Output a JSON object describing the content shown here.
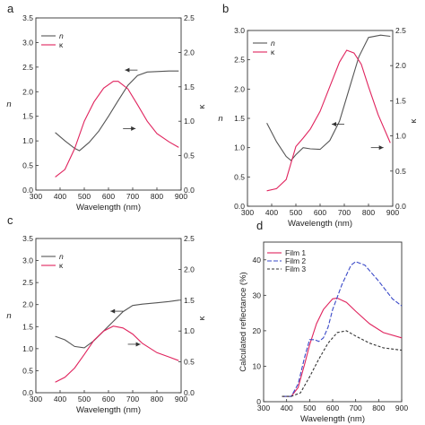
{
  "chart_data": [
    {
      "panel": "a",
      "type": "line",
      "xlabel": "Wavelength (nm)",
      "ylabel": "n",
      "y2label": "κ",
      "xlim": [
        300,
        900
      ],
      "ylim": [
        0,
        3.5
      ],
      "y2lim": [
        0,
        2.5
      ],
      "xticks": [
        "300",
        "400",
        "500",
        "600",
        "700",
        "800",
        "900"
      ],
      "yticks": [
        "0.0",
        "0.5",
        "1.0",
        "1.5",
        "2.0",
        "2.5",
        "3.0",
        "3.5"
      ],
      "y2ticks": [
        "0.0",
        "0.5",
        "1.0",
        "1.5",
        "2.0",
        "2.5"
      ],
      "legend": "top-left",
      "series": [
        {
          "name": "n",
          "axis": "left",
          "color": "#555555",
          "x": [
            380,
            420,
            460,
            480,
            520,
            560,
            600,
            640,
            680,
            720,
            760,
            800,
            850,
            890
          ],
          "y": [
            1.17,
            1.0,
            0.85,
            0.8,
            0.97,
            1.2,
            1.5,
            1.82,
            2.13,
            2.33,
            2.4,
            2.41,
            2.42,
            2.42
          ]
        },
        {
          "name": "κ",
          "axis": "right",
          "color": "#e0245e",
          "x": [
            380,
            420,
            460,
            500,
            540,
            580,
            620,
            640,
            680,
            720,
            760,
            800,
            850,
            890
          ],
          "y": [
            0.19,
            0.3,
            0.6,
            1.0,
            1.28,
            1.48,
            1.58,
            1.58,
            1.47,
            1.24,
            1.0,
            0.82,
            0.7,
            0.62
          ]
        }
      ],
      "arrows": [
        {
          "x": 720,
          "y": 2.44,
          "axis": "left",
          "direction": "left"
        },
        {
          "x": 660,
          "y": 1.25,
          "axis": "left",
          "direction": "right"
        }
      ]
    },
    {
      "panel": "b",
      "type": "line",
      "xlabel": "Wavelength (nm)",
      "ylabel": "n",
      "y2label": "κ",
      "xlim": [
        300,
        900
      ],
      "ylim": [
        0,
        3.0
      ],
      "y2lim": [
        0,
        2.5
      ],
      "xticks": [
        "300",
        "400",
        "500",
        "600",
        "700",
        "800",
        "900"
      ],
      "yticks": [
        "0.0",
        "0.5",
        "1.0",
        "1.5",
        "2.0",
        "2.5",
        "3.0"
      ],
      "y2ticks": [
        "0.0",
        "0.5",
        "1.0",
        "1.5",
        "2.0",
        "2.5"
      ],
      "legend": "top-left",
      "series": [
        {
          "name": "n",
          "axis": "left",
          "color": "#555555",
          "x": [
            380,
            420,
            460,
            480,
            500,
            530,
            560,
            600,
            640,
            680,
            720,
            760,
            800,
            850,
            890
          ],
          "y": [
            1.42,
            1.1,
            0.85,
            0.78,
            0.88,
            1.0,
            0.98,
            0.97,
            1.12,
            1.45,
            2.0,
            2.55,
            2.88,
            2.92,
            2.9
          ]
        },
        {
          "name": "κ",
          "axis": "right",
          "color": "#e0245e",
          "x": [
            380,
            420,
            460,
            500,
            530,
            560,
            600,
            640,
            680,
            710,
            740,
            770,
            800,
            840,
            890
          ],
          "y": [
            0.22,
            0.25,
            0.38,
            0.85,
            0.97,
            1.1,
            1.35,
            1.7,
            2.05,
            2.22,
            2.18,
            2.02,
            1.7,
            1.3,
            0.9
          ]
        }
      ],
      "arrows": [
        {
          "x": 700,
          "y": 1.4,
          "axis": "left",
          "direction": "left"
        },
        {
          "x": 810,
          "y": 1.0,
          "axis": "left",
          "direction": "right"
        }
      ]
    },
    {
      "panel": "c",
      "type": "line",
      "xlabel": "Wavelength (nm)",
      "ylabel": "n",
      "y2label": "κ",
      "xlim": [
        300,
        900
      ],
      "ylim": [
        0,
        3.5
      ],
      "y2lim": [
        0,
        2.5
      ],
      "xticks": [
        "300",
        "400",
        "500",
        "600",
        "700",
        "800",
        "900"
      ],
      "yticks": [
        "0.0",
        "0.5",
        "1.0",
        "1.5",
        "2.0",
        "2.5",
        "3.0",
        "3.5"
      ],
      "y2ticks": [
        "0.0",
        "0.5",
        "1.0",
        "1.5",
        "2.0",
        "2.5"
      ],
      "legend": "top-left",
      "series": [
        {
          "name": "n",
          "axis": "left",
          "color": "#555555",
          "x": [
            380,
            420,
            460,
            500,
            540,
            580,
            620,
            660,
            700,
            740,
            800,
            850,
            890
          ],
          "y": [
            1.28,
            1.2,
            1.05,
            1.02,
            1.18,
            1.4,
            1.62,
            1.84,
            1.98,
            2.01,
            2.04,
            2.07,
            2.1
          ]
        },
        {
          "name": "κ",
          "axis": "right",
          "color": "#e0245e",
          "x": [
            380,
            420,
            460,
            500,
            540,
            580,
            620,
            660,
            700,
            740,
            800,
            850,
            890
          ],
          "y": [
            0.17,
            0.25,
            0.4,
            0.62,
            0.85,
            1.0,
            1.08,
            1.05,
            0.95,
            0.8,
            0.65,
            0.58,
            0.52
          ]
        }
      ],
      "arrows": [
        {
          "x": 660,
          "y": 1.85,
          "axis": "left",
          "direction": "left"
        },
        {
          "x": 680,
          "y": 1.1,
          "axis": "left",
          "direction": "right"
        }
      ]
    },
    {
      "panel": "d",
      "type": "line",
      "xlabel": "Wavelength (nm)",
      "ylabel": "Calculated reflectance (%)",
      "xlim": [
        300,
        900
      ],
      "ylim": [
        0,
        45
      ],
      "xticks": [
        "300",
        "400",
        "500",
        "600",
        "700",
        "800",
        "900"
      ],
      "yticks": [
        "0",
        "10",
        "20",
        "30",
        "40"
      ],
      "legend": "top-left",
      "series": [
        {
          "name": "Film 1",
          "color": "#e0245e",
          "dash": "",
          "x": [
            380,
            420,
            450,
            480,
            500,
            530,
            560,
            600,
            620,
            660,
            700,
            760,
            820,
            900
          ],
          "y": [
            1.5,
            1.5,
            4,
            11,
            16,
            22,
            26,
            29,
            29.2,
            28,
            25.5,
            22,
            19.5,
            18
          ]
        },
        {
          "name": "Film 2",
          "color": "#3a49c8",
          "dash": "5,2",
          "x": [
            380,
            420,
            450,
            480,
            500,
            520,
            540,
            560,
            580,
            600,
            640,
            680,
            700,
            740,
            800,
            860,
            900
          ],
          "y": [
            1.5,
            1.5,
            5,
            13,
            17.5,
            17.5,
            17,
            18,
            21,
            26,
            33,
            38.5,
            39.5,
            38.5,
            34,
            29,
            27
          ]
        },
        {
          "name": "Film 3",
          "color": "#333333",
          "dash": "3,2",
          "x": [
            380,
            420,
            460,
            500,
            540,
            580,
            620,
            660,
            700,
            760,
            820,
            900
          ],
          "y": [
            1.5,
            1.5,
            2.5,
            7,
            12,
            16.5,
            19.5,
            20,
            18.5,
            16.5,
            15.2,
            14.5
          ]
        }
      ]
    }
  ]
}
